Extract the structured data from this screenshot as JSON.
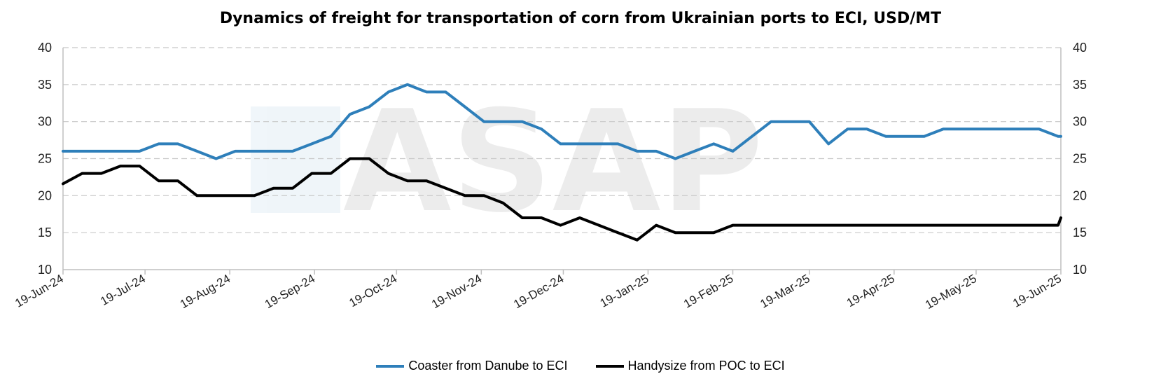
{
  "chart_data": {
    "type": "line",
    "title": "Dynamics of freight for transportation of corn from Ukrainian ports to ECI, USD/MT",
    "ylim": [
      10,
      40
    ],
    "y_ticks": [
      10,
      15,
      20,
      25,
      30,
      35,
      40
    ],
    "x_start": "2024-06-19",
    "x_end": "2025-06-19",
    "x_tick_labels": [
      "19-Jun-24",
      "19-Jul-24",
      "19-Aug-24",
      "19-Sep-24",
      "19-Oct-24",
      "19-Nov-24",
      "19-Dec-24",
      "19-Jan-25",
      "19-Feb-25",
      "19-Mar-25",
      "19-Apr-25",
      "19-May-25",
      "19-Jun-25"
    ],
    "grid": true,
    "legend_position": "bottom",
    "series": [
      {
        "name": "Coaster from Danube to ECI",
        "color": "#2e7fba",
        "x": [
          "2024-06-19",
          "2024-06-26",
          "2024-07-03",
          "2024-07-10",
          "2024-07-17",
          "2024-07-24",
          "2024-07-31",
          "2024-08-07",
          "2024-08-14",
          "2024-08-21",
          "2024-08-28",
          "2024-09-04",
          "2024-09-11",
          "2024-09-18",
          "2024-09-25",
          "2024-10-02",
          "2024-10-09",
          "2024-10-16",
          "2024-10-23",
          "2024-10-30",
          "2024-11-06",
          "2024-11-13",
          "2024-11-20",
          "2024-11-27",
          "2024-12-04",
          "2024-12-11",
          "2024-12-18",
          "2024-12-25",
          "2025-01-01",
          "2025-01-08",
          "2025-01-15",
          "2025-01-22",
          "2025-01-29",
          "2025-02-05",
          "2025-02-12",
          "2025-02-19",
          "2025-02-26",
          "2025-03-05",
          "2025-03-12",
          "2025-03-19",
          "2025-03-26",
          "2025-04-02",
          "2025-04-09",
          "2025-04-16",
          "2025-04-23",
          "2025-04-30",
          "2025-05-07",
          "2025-05-14",
          "2025-05-21",
          "2025-05-28",
          "2025-06-04",
          "2025-06-11",
          "2025-06-18",
          "2025-06-19"
        ],
        "values": [
          26,
          26,
          26,
          26,
          26,
          27,
          27,
          26,
          25,
          26,
          26,
          26,
          26,
          27,
          28,
          31,
          32,
          34,
          35,
          34,
          34,
          32,
          30,
          30,
          30,
          29,
          27,
          27,
          27,
          27,
          26,
          26,
          25,
          26,
          27,
          26,
          28,
          30,
          30,
          30,
          27,
          29,
          29,
          28,
          28,
          28,
          29,
          29,
          29,
          29,
          29,
          29,
          28,
          28
        ]
      },
      {
        "name": "Handysize from POC to ECI",
        "color": "#000000",
        "x": [
          "2024-06-19",
          "2024-06-26",
          "2024-07-03",
          "2024-07-10",
          "2024-07-17",
          "2024-07-24",
          "2024-07-31",
          "2024-08-07",
          "2024-08-14",
          "2024-08-21",
          "2024-08-28",
          "2024-09-04",
          "2024-09-11",
          "2024-09-18",
          "2024-09-25",
          "2024-10-02",
          "2024-10-09",
          "2024-10-16",
          "2024-10-23",
          "2024-10-30",
          "2024-11-06",
          "2024-11-13",
          "2024-11-20",
          "2024-11-27",
          "2024-12-04",
          "2024-12-11",
          "2024-12-18",
          "2024-12-25",
          "2025-01-01",
          "2025-01-08",
          "2025-01-15",
          "2025-01-22",
          "2025-01-29",
          "2025-02-05",
          "2025-02-12",
          "2025-02-19",
          "2025-02-26",
          "2025-03-05",
          "2025-03-12",
          "2025-03-19",
          "2025-03-26",
          "2025-04-02",
          "2025-04-09",
          "2025-04-16",
          "2025-04-23",
          "2025-04-30",
          "2025-05-07",
          "2025-05-14",
          "2025-05-21",
          "2025-05-28",
          "2025-06-04",
          "2025-06-11",
          "2025-06-18",
          "2025-06-19"
        ],
        "values": [
          21.6,
          23,
          23,
          24,
          24,
          22,
          22,
          20,
          20,
          20,
          20,
          21,
          21,
          23,
          23,
          25,
          25,
          23,
          22,
          22,
          21,
          20,
          20,
          19,
          17,
          17,
          16,
          17,
          16,
          15,
          14,
          16,
          15,
          15,
          15,
          16,
          16,
          16,
          16,
          16,
          16,
          16,
          16,
          16,
          16,
          16,
          16,
          16,
          16,
          16,
          16,
          16,
          16,
          17
        ]
      }
    ]
  },
  "watermark_text": "ASAP",
  "legend_items": [
    "Coaster from Danube to ECI",
    "Handysize from POC to ECI"
  ]
}
